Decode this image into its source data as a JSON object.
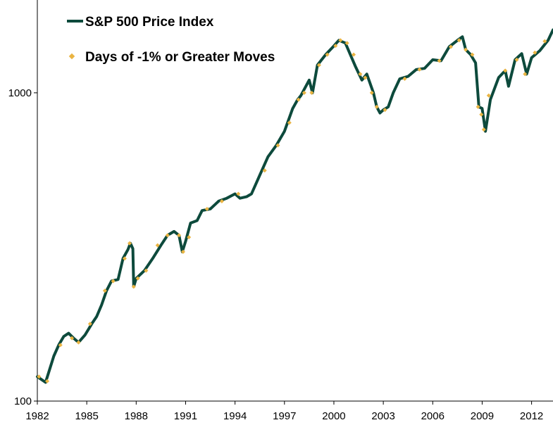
{
  "chart_data": {
    "type": "line",
    "title": "",
    "xlabel": "",
    "ylabel": "",
    "y_scale": "log",
    "ylim": [
      100,
      2000
    ],
    "xlim": [
      1982,
      2013.3
    ],
    "grid": false,
    "legend_position": "top-left",
    "x_ticks": [
      "1982",
      "1985",
      "1988",
      "1991",
      "1994",
      "1997",
      "2000",
      "2003",
      "2006",
      "2009",
      "2012"
    ],
    "y_ticks": [
      "100",
      "1000"
    ],
    "colors": {
      "price_line": "#0d4a3c",
      "big_move_dots": "#eab442"
    },
    "series": [
      {
        "name": "S&P 500 Price Index",
        "kind": "line",
        "x": [
          1982.0,
          1982.5,
          1983.0,
          1983.3,
          1983.6,
          1983.9,
          1984.2,
          1984.5,
          1984.9,
          1985.3,
          1985.6,
          1985.9,
          1986.2,
          1986.5,
          1986.9,
          1987.2,
          1987.5,
          1987.65,
          1987.8,
          1987.85,
          1988.0,
          1988.5,
          1989.0,
          1989.5,
          1989.9,
          1990.3,
          1990.6,
          1990.8,
          1991.0,
          1991.3,
          1991.7,
          1992.0,
          1992.5,
          1993.0,
          1993.5,
          1994.0,
          1994.3,
          1994.7,
          1995.0,
          1995.5,
          1996.0,
          1996.5,
          1997.0,
          1997.5,
          1997.8,
          1998.0,
          1998.5,
          1998.7,
          1999.0,
          1999.5,
          2000.0,
          2000.3,
          2000.7,
          2001.0,
          2001.3,
          2001.7,
          2002.0,
          2002.4,
          2002.6,
          2002.8,
          2003.0,
          2003.3,
          2003.6,
          2004.0,
          2004.5,
          2005.0,
          2005.5,
          2006.0,
          2006.5,
          2007.0,
          2007.5,
          2007.8,
          2008.0,
          2008.3,
          2008.6,
          2008.8,
          2009.0,
          2009.2,
          2009.5,
          2010.0,
          2010.4,
          2010.6,
          2011.0,
          2011.4,
          2011.7,
          2012.0,
          2012.5,
          2013.0,
          2013.3
        ],
        "values": [
          120,
          115,
          140,
          152,
          162,
          166,
          160,
          155,
          164,
          178,
          188,
          205,
          228,
          245,
          248,
          290,
          310,
          325,
          312,
          235,
          250,
          265,
          290,
          320,
          345,
          355,
          345,
          305,
          330,
          378,
          385,
          415,
          420,
          445,
          455,
          470,
          455,
          460,
          470,
          540,
          620,
          675,
          750,
          890,
          950,
          980,
          1100,
          1000,
          1230,
          1330,
          1420,
          1480,
          1450,
          1330,
          1220,
          1100,
          1150,
          1000,
          900,
          860,
          880,
          900,
          1000,
          1110,
          1130,
          1190,
          1200,
          1280,
          1270,
          1410,
          1480,
          1520,
          1380,
          1330,
          1250,
          900,
          890,
          750,
          950,
          1120,
          1180,
          1050,
          1280,
          1340,
          1150,
          1300,
          1370,
          1480,
          1600
        ]
      },
      {
        "name": "Days of -1% or Greater Moves",
        "kind": "markers",
        "x": [
          1982.1,
          1982.6,
          1983.4,
          1984.1,
          1984.5,
          1985.2,
          1986.1,
          1986.6,
          1987.3,
          1987.6,
          1987.85,
          1988.1,
          1988.6,
          1989.3,
          1989.9,
          1990.6,
          1990.85,
          1991.2,
          1992.3,
          1993.2,
          1994.2,
          1995.8,
          1996.6,
          1997.3,
          1997.85,
          1998.2,
          1998.65,
          1999.1,
          1999.6,
          2000.1,
          2000.4,
          2000.8,
          2001.2,
          2001.6,
          2001.9,
          2002.3,
          2002.6,
          2003.1,
          2004.3,
          2005.2,
          2006.4,
          2007.1,
          2007.6,
          2008.0,
          2008.4,
          2008.75,
          2008.95,
          2009.1,
          2009.4,
          2010.4,
          2011.1,
          2011.6,
          2012.2,
          2012.8
        ],
        "values": [
          120,
          116,
          152,
          160,
          155,
          178,
          228,
          245,
          290,
          325,
          235,
          250,
          265,
          320,
          345,
          345,
          305,
          340,
          420,
          445,
          470,
          560,
          675,
          800,
          950,
          1000,
          1000,
          1230,
          1330,
          1420,
          1480,
          1450,
          1330,
          1150,
          1120,
          1000,
          900,
          880,
          1110,
          1190,
          1270,
          1410,
          1480,
          1380,
          1330,
          900,
          850,
          760,
          980,
          1180,
          1280,
          1150,
          1350,
          1470
        ]
      }
    ]
  }
}
